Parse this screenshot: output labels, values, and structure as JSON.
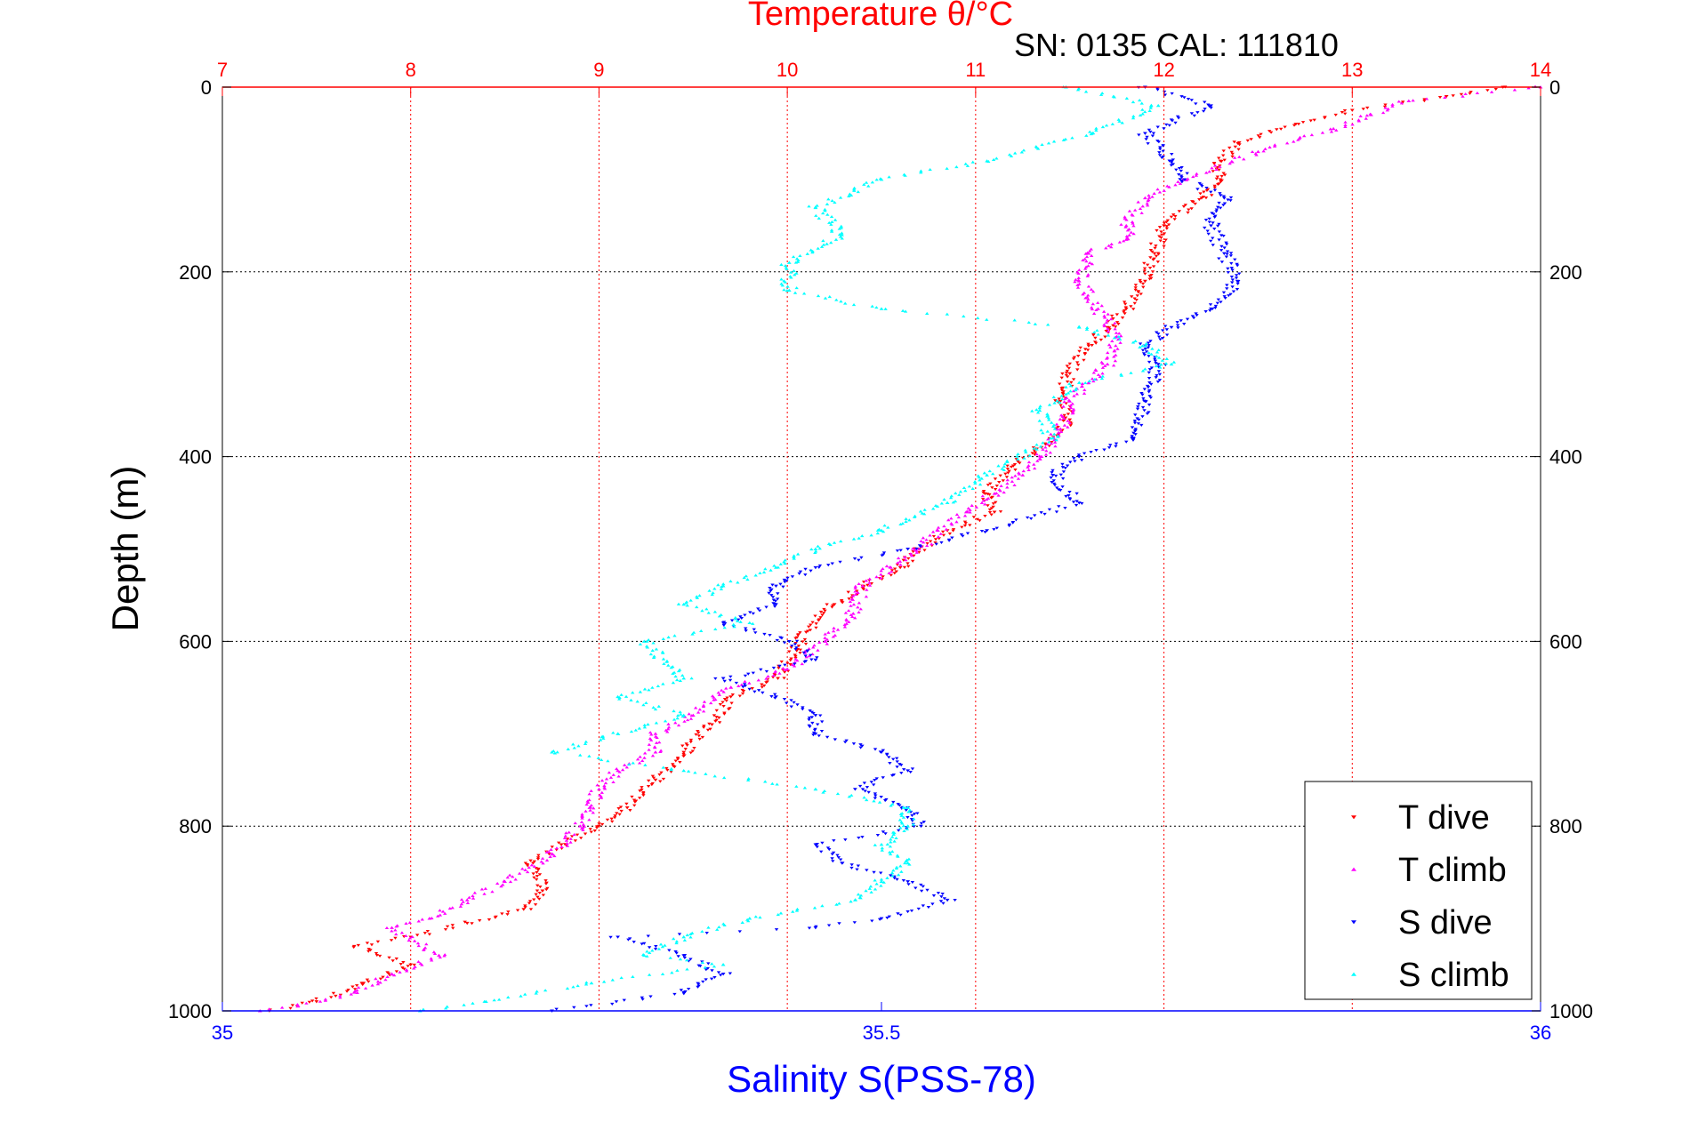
{
  "chart_data": {
    "type": "scatter",
    "title": "Temperature θ/°C",
    "subtitle": "SN: 0135  CAL: 111810",
    "ylabel": "Depth (m)",
    "xlabel_bottom": "Salinity S(PSS-78)",
    "y_reversed": true,
    "ylim": [
      0,
      1000
    ],
    "yticks": [
      "0",
      "200",
      "400",
      "600",
      "800",
      "1000"
    ],
    "temperature_axis": {
      "position": "top",
      "range": [
        7,
        14
      ],
      "ticks": [
        "7",
        "8",
        "9",
        "10",
        "11",
        "12",
        "13",
        "14"
      ],
      "color": "#ff0000",
      "vertical_grid": true
    },
    "salinity_axis": {
      "position": "bottom",
      "range": [
        35,
        36
      ],
      "ticks": [
        "35",
        "35.5",
        "36"
      ],
      "color": "#0000ff"
    },
    "grid": true,
    "legend": {
      "placement": "bottom-right"
    },
    "series": [
      {
        "name": "T dive",
        "axis": "temperature",
        "color": "#ff0000",
        "marker": "triangle-down",
        "points": [
          [
            13.8,
            0
          ],
          [
            13.5,
            10
          ],
          [
            13.0,
            25
          ],
          [
            12.7,
            40
          ],
          [
            12.4,
            60
          ],
          [
            12.3,
            80
          ],
          [
            12.3,
            100
          ],
          [
            12.2,
            120
          ],
          [
            12.0,
            150
          ],
          [
            11.95,
            180
          ],
          [
            11.9,
            210
          ],
          [
            11.8,
            240
          ],
          [
            11.7,
            260
          ],
          [
            11.6,
            280
          ],
          [
            11.5,
            310
          ],
          [
            11.45,
            340
          ],
          [
            11.5,
            360
          ],
          [
            11.35,
            390
          ],
          [
            11.2,
            410
          ],
          [
            11.05,
            440
          ],
          [
            11.1,
            460
          ],
          [
            10.85,
            480
          ],
          [
            10.7,
            500
          ],
          [
            10.6,
            520
          ],
          [
            10.4,
            540
          ],
          [
            10.25,
            560
          ],
          [
            10.1,
            590
          ],
          [
            10.05,
            610
          ],
          [
            9.95,
            640
          ],
          [
            9.7,
            660
          ],
          [
            9.6,
            690
          ],
          [
            9.45,
            720
          ],
          [
            9.3,
            750
          ],
          [
            9.15,
            780
          ],
          [
            9.0,
            800
          ],
          [
            8.8,
            820
          ],
          [
            8.65,
            840
          ],
          [
            8.7,
            870
          ],
          [
            8.6,
            890
          ],
          [
            8.3,
            905
          ],
          [
            8.0,
            920
          ],
          [
            7.7,
            930
          ],
          [
            8.0,
            950
          ],
          [
            7.75,
            970
          ],
          [
            7.5,
            990
          ],
          [
            7.25,
            1000
          ]
        ]
      },
      {
        "name": "T climb",
        "axis": "temperature",
        "color": "#ff00ff",
        "marker": "triangle-up",
        "points": [
          [
            14.0,
            0
          ],
          [
            13.3,
            15
          ],
          [
            13.1,
            30
          ],
          [
            12.9,
            45
          ],
          [
            12.5,
            70
          ],
          [
            12.1,
            100
          ],
          [
            11.9,
            120
          ],
          [
            11.8,
            150
          ],
          [
            11.8,
            165
          ],
          [
            11.6,
            180
          ],
          [
            11.55,
            210
          ],
          [
            11.65,
            240
          ],
          [
            11.75,
            270
          ],
          [
            11.7,
            300
          ],
          [
            11.6,
            320
          ],
          [
            11.5,
            340
          ],
          [
            11.45,
            370
          ],
          [
            11.35,
            400
          ],
          [
            11.25,
            420
          ],
          [
            11.1,
            440
          ],
          [
            10.95,
            460
          ],
          [
            10.8,
            480
          ],
          [
            10.7,
            500
          ],
          [
            10.55,
            520
          ],
          [
            10.4,
            540
          ],
          [
            10.35,
            570
          ],
          [
            10.2,
            600
          ],
          [
            10.0,
            630
          ],
          [
            9.7,
            650
          ],
          [
            9.5,
            680
          ],
          [
            9.3,
            700
          ],
          [
            9.3,
            720
          ],
          [
            9.1,
            740
          ],
          [
            9.0,
            760
          ],
          [
            8.95,
            780
          ],
          [
            8.9,
            800
          ],
          [
            8.75,
            830
          ],
          [
            8.5,
            860
          ],
          [
            8.3,
            880
          ],
          [
            8.1,
            900
          ],
          [
            7.9,
            910
          ],
          [
            8.15,
            940
          ],
          [
            7.9,
            960
          ],
          [
            7.7,
            980
          ],
          [
            7.4,
            995
          ],
          [
            7.2,
            1000
          ]
        ]
      },
      {
        "name": "S dive",
        "axis": "salinity",
        "color": "#0000ff",
        "marker": "triangle-down",
        "points": [
          [
            35.7,
            0
          ],
          [
            35.75,
            20
          ],
          [
            35.7,
            50
          ],
          [
            35.72,
            80
          ],
          [
            35.73,
            100
          ],
          [
            35.76,
            120
          ],
          [
            35.75,
            150
          ],
          [
            35.76,
            180
          ],
          [
            35.77,
            210
          ],
          [
            35.75,
            240
          ],
          [
            35.72,
            260
          ],
          [
            35.7,
            280
          ],
          [
            35.71,
            300
          ],
          [
            35.7,
            340
          ],
          [
            35.69,
            380
          ],
          [
            35.65,
            400
          ],
          [
            35.63,
            420
          ],
          [
            35.65,
            450
          ],
          [
            35.58,
            480
          ],
          [
            35.52,
            500
          ],
          [
            35.45,
            520
          ],
          [
            35.42,
            540
          ],
          [
            35.42,
            560
          ],
          [
            35.38,
            580
          ],
          [
            35.43,
            600
          ],
          [
            35.45,
            620
          ],
          [
            35.38,
            640
          ],
          [
            35.42,
            660
          ],
          [
            35.45,
            680
          ],
          [
            35.45,
            700
          ],
          [
            35.5,
            720
          ],
          [
            35.52,
            740
          ],
          [
            35.48,
            760
          ],
          [
            35.52,
            780
          ],
          [
            35.53,
            800
          ],
          [
            35.45,
            820
          ],
          [
            35.47,
            840
          ],
          [
            35.52,
            860
          ],
          [
            35.55,
            880
          ],
          [
            35.5,
            900
          ],
          [
            35.45,
            910
          ],
          [
            35.3,
            920
          ],
          [
            35.35,
            940
          ],
          [
            35.38,
            960
          ],
          [
            35.35,
            980
          ],
          [
            35.25,
            1000
          ]
        ]
      },
      {
        "name": "S climb",
        "axis": "salinity",
        "color": "#00ffff",
        "marker": "triangle-up",
        "points": [
          [
            35.64,
            0
          ],
          [
            35.71,
            20
          ],
          [
            35.66,
            50
          ],
          [
            35.58,
            80
          ],
          [
            35.5,
            100
          ],
          [
            35.45,
            130
          ],
          [
            35.47,
            160
          ],
          [
            35.43,
            190
          ],
          [
            35.43,
            220
          ],
          [
            35.5,
            240
          ],
          [
            35.65,
            260
          ],
          [
            35.7,
            280
          ],
          [
            35.72,
            300
          ],
          [
            35.65,
            320
          ],
          [
            35.62,
            350
          ],
          [
            35.63,
            380
          ],
          [
            35.58,
            420
          ],
          [
            35.55,
            450
          ],
          [
            35.5,
            480
          ],
          [
            35.45,
            500
          ],
          [
            35.42,
            520
          ],
          [
            35.38,
            540
          ],
          [
            35.35,
            560
          ],
          [
            35.4,
            580
          ],
          [
            35.32,
            600
          ],
          [
            35.35,
            640
          ],
          [
            35.3,
            660
          ],
          [
            35.35,
            680
          ],
          [
            35.3,
            700
          ],
          [
            35.25,
            720
          ],
          [
            35.35,
            740
          ],
          [
            35.45,
            760
          ],
          [
            35.52,
            780
          ],
          [
            35.52,
            800
          ],
          [
            35.5,
            820
          ],
          [
            35.52,
            840
          ],
          [
            35.5,
            860
          ],
          [
            35.48,
            880
          ],
          [
            35.4,
            900
          ],
          [
            35.35,
            920
          ],
          [
            35.32,
            940
          ],
          [
            35.38,
            950
          ],
          [
            35.28,
            970
          ],
          [
            35.2,
            990
          ],
          [
            35.15,
            1000
          ]
        ]
      }
    ]
  }
}
